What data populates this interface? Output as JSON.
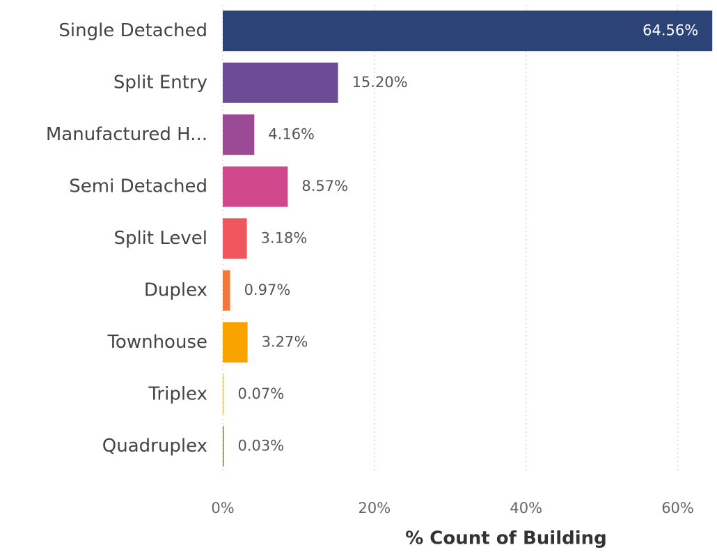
{
  "chart_data": {
    "type": "bar",
    "orientation": "horizontal",
    "categories": [
      "Single Detached",
      "Split Entry",
      "Manufactured H...",
      "Semi Detached",
      "Split Level",
      "Duplex",
      "Townhouse",
      "Triplex",
      "Quadruplex"
    ],
    "values": [
      64.56,
      15.2,
      4.16,
      8.57,
      3.18,
      0.97,
      3.27,
      0.07,
      0.03
    ],
    "value_labels": [
      "64.56%",
      "15.20%",
      "4.16%",
      "8.57%",
      "3.18%",
      "0.97%",
      "3.27%",
      "0.07%",
      "0.03%"
    ],
    "colors": [
      "#2c4378",
      "#6b4c94",
      "#9b4a96",
      "#d1478c",
      "#f1565f",
      "#f2773b",
      "#f8a300",
      "#f1c44a",
      "#8c7a2e"
    ],
    "xlabel": "% Count of Building",
    "xlim": [
      0,
      65
    ],
    "xticks": [
      {
        "value": 0,
        "label": "0%"
      },
      {
        "value": 20,
        "label": "20%"
      },
      {
        "value": 40,
        "label": "40%"
      },
      {
        "value": 60,
        "label": "60%"
      }
    ],
    "grid": true
  }
}
